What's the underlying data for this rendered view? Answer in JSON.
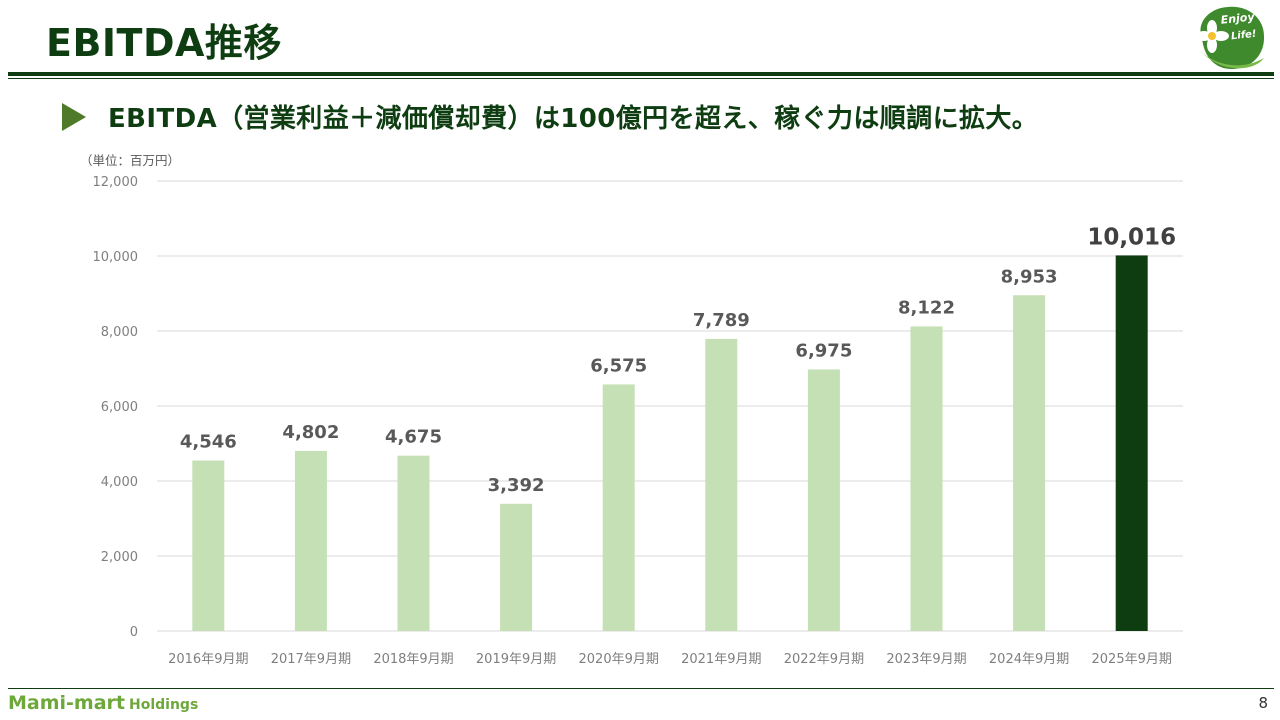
{
  "slide": {
    "title": "EBITDA推移",
    "subtitle": "EBITDA（営業利益＋減価償却費）は100億円を超え、稼ぐ力は順調に拡大。",
    "page_number": "8"
  },
  "logo": {
    "line1": "Enjoy",
    "line2": "Life!"
  },
  "footer": {
    "brand_main": "Mami-mart",
    "brand_sub": "Holdings"
  },
  "colors": {
    "title": "#0f3d12",
    "bar": "#c5e0b5",
    "bar_highlight": "#0f3d12",
    "data_label": "#595959",
    "axis_text": "#7f7f7f",
    "grid": "#d9d9d9",
    "brand": "#6ea83a"
  },
  "chart_data": {
    "type": "bar",
    "unit_label": "（単位：百万円）",
    "categories": [
      "2016年9月期",
      "2017年9月期",
      "2018年9月期",
      "2019年9月期",
      "2020年9月期",
      "2021年9月期",
      "2022年9月期",
      "2023年9月期",
      "2024年9月期",
      "2025年9月期"
    ],
    "values": [
      4546,
      4802,
      4675,
      3392,
      6575,
      7789,
      6975,
      8122,
      8953,
      10016
    ],
    "data_labels": [
      "4,546",
      "4,802",
      "4,675",
      "3,392",
      "6,575",
      "7,789",
      "6,975",
      "8,122",
      "8,953",
      "10,016"
    ],
    "highlight_index": 9,
    "ylim": [
      0,
      12000
    ],
    "yticks": [
      0,
      2000,
      4000,
      6000,
      8000,
      10000,
      12000
    ],
    "ytick_labels": [
      "0",
      "2,000",
      "4,000",
      "6,000",
      "8,000",
      "10,000",
      "12,000"
    ],
    "grid": true,
    "legend": "none",
    "title": "",
    "xlabel": "",
    "ylabel": ""
  }
}
